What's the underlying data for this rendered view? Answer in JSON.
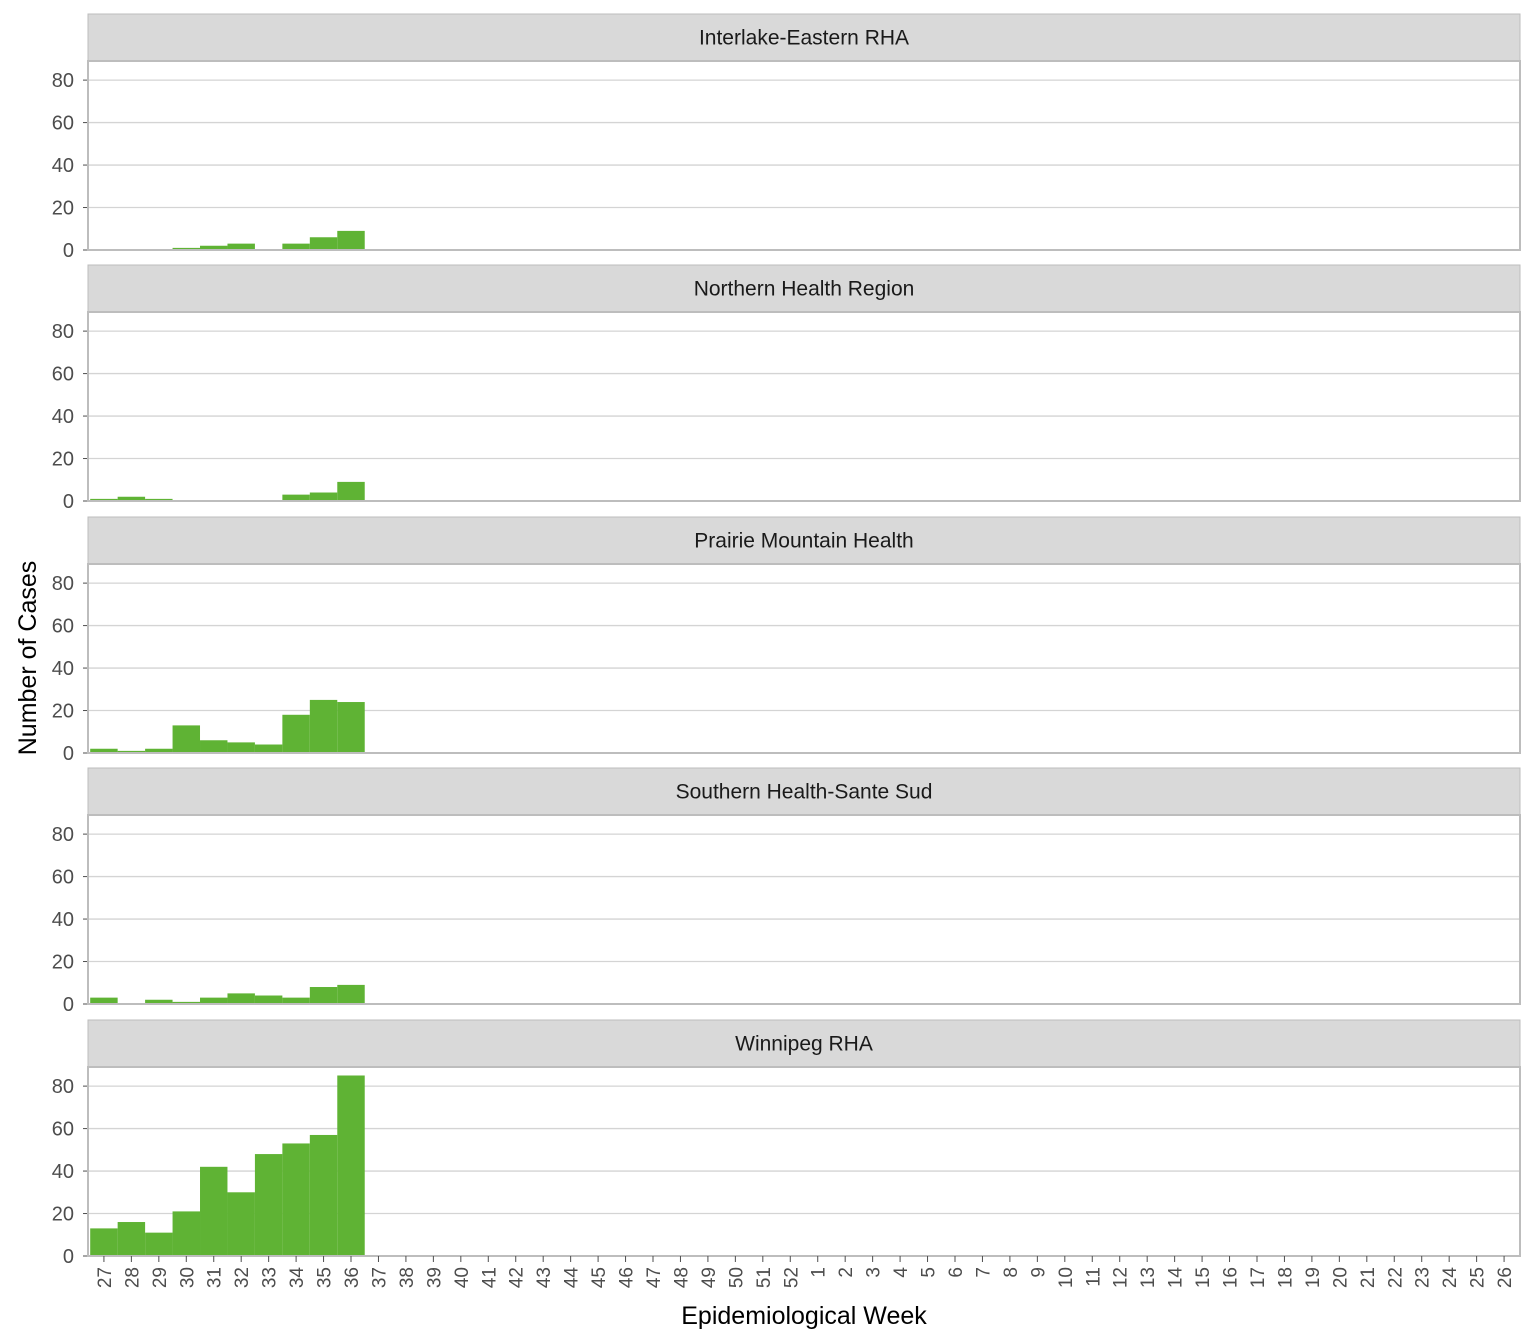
{
  "chart_data": {
    "type": "bar",
    "xlabel": "Epidemiological Week",
    "ylabel": "Number of Cases",
    "ylim": [
      0,
      89
    ],
    "yticks": [
      0,
      20,
      40,
      60,
      80
    ],
    "grid": true,
    "bar_color": "#5fb334",
    "strip_color": "#d9d9d9",
    "categories": [
      "27",
      "28",
      "29",
      "30",
      "31",
      "32",
      "33",
      "34",
      "35",
      "36",
      "37",
      "38",
      "39",
      "40",
      "41",
      "42",
      "43",
      "44",
      "45",
      "46",
      "47",
      "48",
      "49",
      "50",
      "51",
      "52",
      "1",
      "2",
      "3",
      "4",
      "5",
      "6",
      "7",
      "8",
      "9",
      "10",
      "11",
      "12",
      "13",
      "14",
      "15",
      "16",
      "17",
      "18",
      "19",
      "20",
      "21",
      "22",
      "23",
      "24",
      "25",
      "26"
    ],
    "panels": [
      {
        "name": "Interlake-Eastern RHA",
        "values": [
          0,
          0,
          0,
          1,
          2,
          3,
          0,
          3,
          6,
          9
        ]
      },
      {
        "name": "Northern Health Region",
        "values": [
          1,
          2,
          1,
          0,
          0,
          0,
          0,
          3,
          4,
          9
        ]
      },
      {
        "name": "Prairie Mountain Health",
        "values": [
          2,
          1,
          2,
          13,
          6,
          5,
          4,
          18,
          25,
          24
        ]
      },
      {
        "name": "Southern Health-Sante Sud",
        "values": [
          3,
          0,
          2,
          1,
          3,
          5,
          4,
          3,
          8,
          9
        ]
      },
      {
        "name": "Winnipeg RHA",
        "values": [
          13,
          16,
          11,
          21,
          42,
          30,
          48,
          53,
          57,
          85
        ]
      }
    ]
  }
}
